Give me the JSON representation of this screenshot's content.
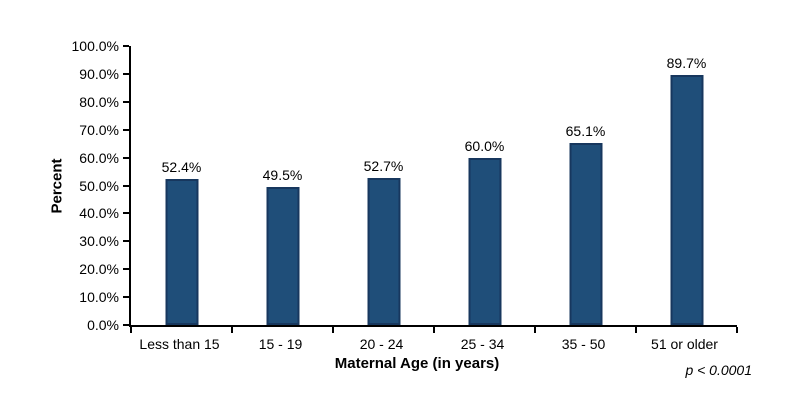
{
  "chart_data": {
    "type": "bar",
    "categories": [
      "Less than 15",
      "15 - 19",
      "20 - 24",
      "25 - 34",
      "35 - 50",
      "51 or older"
    ],
    "values": [
      52.4,
      49.5,
      52.7,
      60.0,
      65.1,
      89.7
    ],
    "value_labels": [
      "52.4%",
      "49.5%",
      "52.7%",
      "60.0%",
      "65.1%",
      "89.7%"
    ],
    "xlabel": "Maternal Age (in years)",
    "ylabel": "Percent",
    "ylim": [
      0,
      100
    ],
    "ytick_step": 10,
    "ytick_labels": [
      "0.0%",
      "10.0%",
      "20.0%",
      "30.0%",
      "40.0%",
      "50.0%",
      "60.0%",
      "70.0%",
      "80.0%",
      "90.0%",
      "100.0%"
    ],
    "grid": false,
    "legend": "none",
    "annotation": "p < 0.0001",
    "bar_color": "#1F4E79",
    "bar_border_color": "#17375E",
    "axis_color": "#000000",
    "text_color": "#000000"
  }
}
